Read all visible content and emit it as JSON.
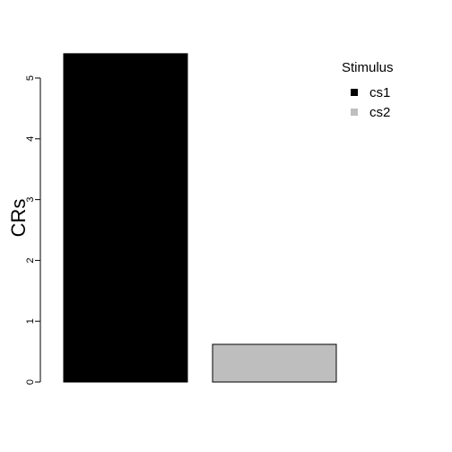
{
  "chart_data": {
    "type": "bar",
    "categories": [
      "cs1",
      "cs2"
    ],
    "values": [
      5.4,
      0.62
    ],
    "colors": [
      "#000000",
      "#bebebe"
    ],
    "ylabel": "CRs",
    "ylim": [
      0,
      5.4
    ],
    "yticks": [
      "0",
      "1",
      "2",
      "3",
      "4",
      "5"
    ],
    "grid": false,
    "legend": {
      "title": "Stimulus",
      "position": "top-right",
      "entries": [
        "cs1",
        "cs2"
      ]
    }
  }
}
